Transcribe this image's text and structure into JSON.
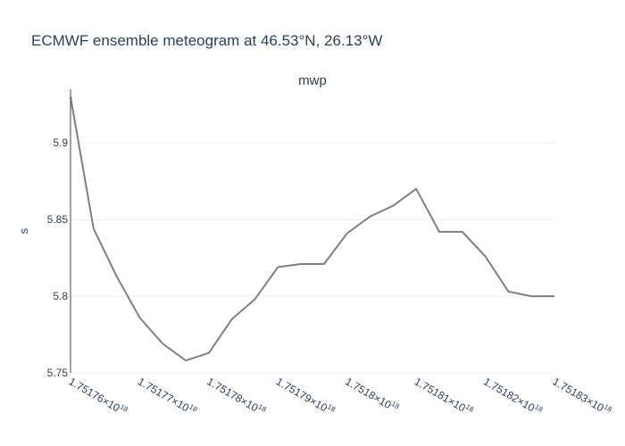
{
  "chart_data": {
    "type": "line",
    "title": "ECMWF ensemble meteogram at 46.53°N, 26.13°W",
    "subtitle": "mwp",
    "ylabel": "s",
    "xlabel": "",
    "ylim": [
      5.75,
      5.935
    ],
    "y_ticks": [
      5.75,
      5.8,
      5.85,
      5.9
    ],
    "y_tick_labels": [
      "5.75",
      "5.8",
      "5.85",
      "5.9"
    ],
    "x_ticks": [
      0,
      3,
      6,
      9,
      12,
      15,
      18,
      21
    ],
    "x_tick_labels": [
      {
        "mantissa": "1.75176×10",
        "exp": "18"
      },
      {
        "mantissa": "1.75177×10",
        "exp": "18"
      },
      {
        "mantissa": "1.75178×10",
        "exp": "18"
      },
      {
        "mantissa": "1.75179×10",
        "exp": "18"
      },
      {
        "mantissa": "1.7518×10",
        "exp": "18"
      },
      {
        "mantissa": "1.75181×10",
        "exp": "18"
      },
      {
        "mantissa": "1.75182×10",
        "exp": "18"
      },
      {
        "mantissa": "1.75183×10",
        "exp": "18"
      }
    ],
    "grid": true,
    "series": [
      {
        "color": "#7f7f7f",
        "x": [
          0,
          1,
          2,
          3,
          4,
          5,
          6,
          7,
          8,
          9,
          10,
          11,
          12,
          13,
          14,
          15,
          16,
          17,
          18,
          19,
          20,
          21
        ],
        "y": [
          5.93,
          5.844,
          5.813,
          5.786,
          5.769,
          5.758,
          5.763,
          5.785,
          5.798,
          5.819,
          5.821,
          5.821,
          5.841,
          5.852,
          5.859,
          5.87,
          5.842,
          5.842,
          5.826,
          5.803,
          5.8,
          5.8
        ]
      }
    ]
  }
}
